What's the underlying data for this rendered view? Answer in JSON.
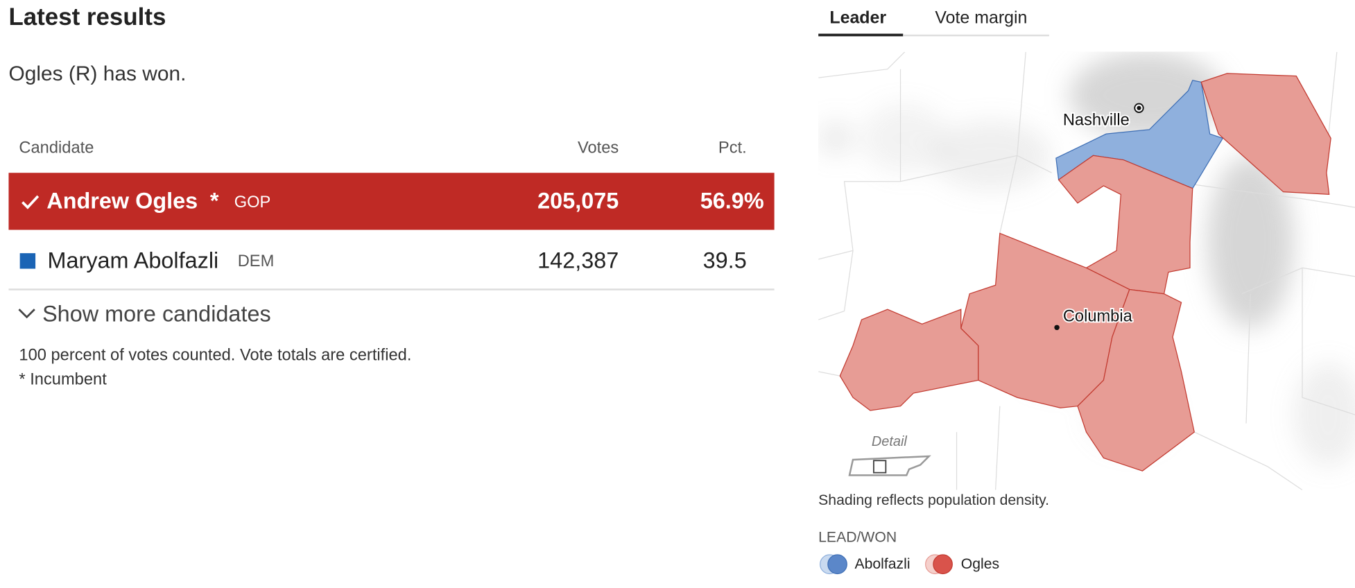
{
  "header": {
    "title": "Latest results",
    "status": "Ogles (R) has won."
  },
  "table": {
    "columns": [
      "Candidate",
      "Votes",
      "Pct."
    ],
    "rows": [
      {
        "name": "Andrew Ogles",
        "incumbent_mark": "*",
        "party": "GOP",
        "votes": "205,075",
        "pct": "56.9%"
      },
      {
        "name": "Maryam Abolfazli",
        "party": "DEM",
        "votes": "142,387",
        "pct": "39.5"
      }
    ]
  },
  "show_more": "Show more candidates",
  "notes": [
    "100 percent of votes counted. Vote totals are certified.",
    "* Incumbent"
  ],
  "map": {
    "tabs": [
      "Leader",
      "Vote margin"
    ],
    "cities": [
      "Nashville",
      "Columbia"
    ],
    "detail": "Detail",
    "caption": "Shading reflects population density.",
    "legend": {
      "title": "LEAD/WON",
      "items": [
        "Abolfazli",
        "Ogles"
      ]
    }
  }
}
